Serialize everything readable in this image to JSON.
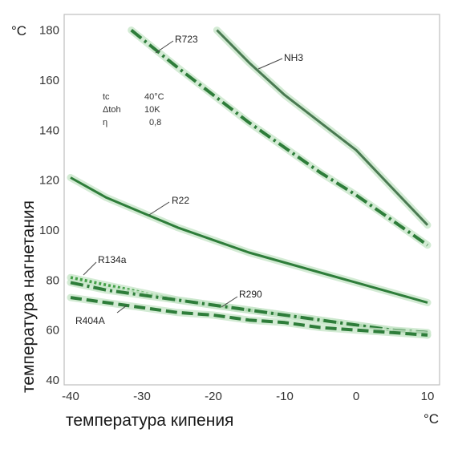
{
  "chart_data": {
    "type": "line",
    "xlabel": "температура кипения",
    "ylabel": "температура нагнетания",
    "x_unit": "°C",
    "y_unit": "°C",
    "xlim": [
      -40,
      10
    ],
    "ylim": [
      40,
      185
    ],
    "x_ticks": [
      "-40",
      "-30",
      "-20",
      "-10",
      "0",
      "10"
    ],
    "y_ticks": [
      "40",
      "60",
      "80",
      "100",
      "120",
      "140",
      "160",
      "180"
    ],
    "grid": false,
    "parameters": {
      "rows": [
        {
          "symbol": "tc",
          "value": "40°C"
        },
        {
          "symbol": "Δtoh",
          "value": "10K"
        },
        {
          "symbol": "η",
          "value": "0,8"
        }
      ]
    },
    "series": [
      {
        "name": "R723",
        "style": "dash-dot",
        "color": "#2e7d3a",
        "x": [
          -31.5,
          -25,
          -20,
          -15,
          -10,
          -5,
          0,
          5,
          10
        ],
        "y": [
          180,
          165,
          154,
          143,
          133,
          123,
          114,
          104,
          94
        ]
      },
      {
        "name": "NH3",
        "style": "solid",
        "color": "#4a7a52",
        "x": [
          -19.5,
          -15,
          -10,
          -5,
          0,
          5,
          10
        ],
        "y": [
          180,
          167,
          154,
          143,
          132,
          117,
          102
        ]
      },
      {
        "name": "R22",
        "style": "solid",
        "color": "#2e7d3a",
        "x": [
          -40,
          -35,
          -30,
          -25,
          -20,
          -15,
          -10,
          -5,
          0,
          5,
          10
        ],
        "y": [
          121,
          113,
          107,
          101,
          96,
          91,
          87,
          83,
          79,
          75,
          71
        ]
      },
      {
        "name": "R134a",
        "style": "dotted",
        "color": "#43a047",
        "x": [
          -40,
          -35,
          -30,
          -25,
          -20,
          -15,
          -10,
          -5,
          0,
          5,
          10
        ],
        "y": [
          81,
          78,
          75,
          72,
          70,
          68,
          66,
          64,
          62,
          60,
          58
        ]
      },
      {
        "name": "R290",
        "style": "dash-dot",
        "color": "#2e7d3a",
        "x": [
          -40,
          -35,
          -30,
          -25,
          -20,
          -15,
          -10,
          -5,
          0,
          5,
          10
        ],
        "y": [
          79,
          76,
          74,
          72,
          70,
          68,
          66,
          64,
          62,
          60,
          59
        ]
      },
      {
        "name": "R404A",
        "style": "dashed",
        "color": "#2e7d3a",
        "x": [
          -40,
          -35,
          -30,
          -25,
          -20,
          -15,
          -10,
          -5,
          0,
          5,
          10
        ],
        "y": [
          73,
          71,
          69,
          67,
          66,
          64,
          63,
          61,
          60,
          59,
          58
        ]
      }
    ],
    "series_label_texts": [
      "R723",
      "NH3",
      "R22",
      "R134a",
      "R290",
      "R404A"
    ]
  }
}
